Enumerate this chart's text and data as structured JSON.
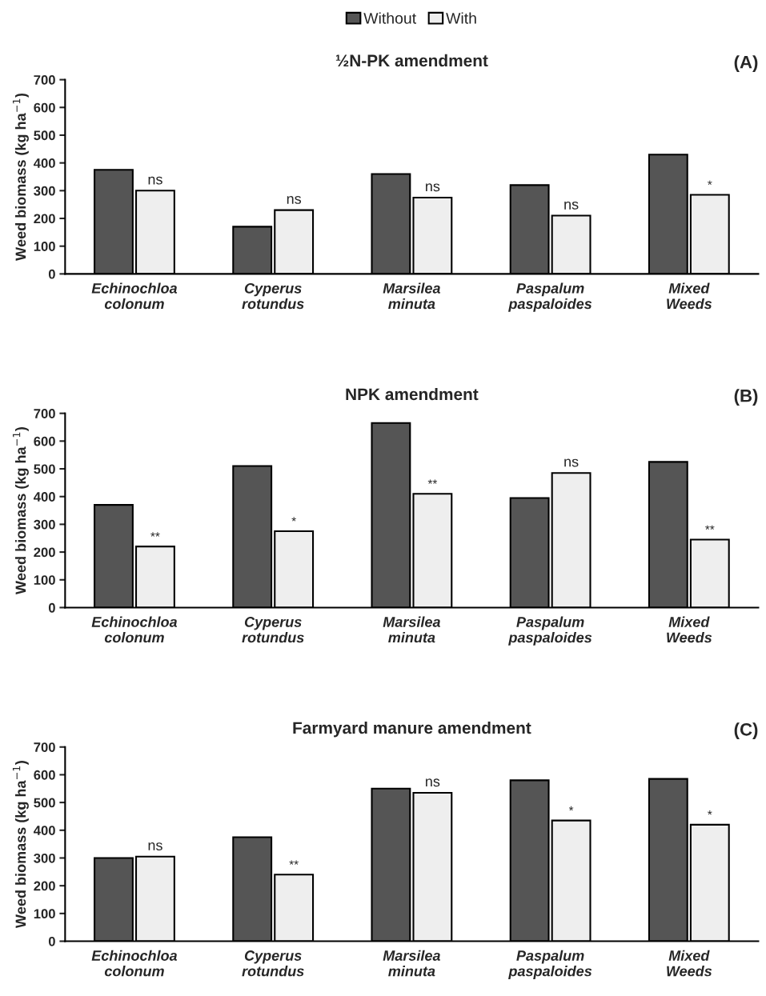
{
  "chart_data": [
    {
      "type": "bar",
      "title": "½N-PK amendment",
      "ylabel": "Weed biomass (kg ha$^{−1}$)",
      "categories": [
        "Echinochloa\ncolonum",
        "Cyperus\nrotundus",
        "Marsilea\nminuta",
        "Paspalum\npaspaloides",
        "Mixed\nWeeds"
      ],
      "series": [
        {
          "name": "Without",
          "color": "#555555",
          "values": [
            375,
            170,
            360,
            320,
            430
          ]
        },
        {
          "name": "With",
          "color": "#eeeeee",
          "values": [
            300,
            230,
            275,
            210,
            285
          ]
        }
      ],
      "ylim": [
        0,
        700
      ],
      "yticks": [
        0,
        100,
        200,
        300,
        400,
        500,
        600,
        700
      ],
      "legend": "top",
      "grid": false,
      "annotations": [
        "(A)",
        {
          "text": "ns",
          "x": "Echinochloa\ncolonum",
          "y": 300
        },
        {
          "text": "ns",
          "x": "Cyperus\nrotundus",
          "y": 230
        },
        {
          "text": "ns",
          "x": "Marsilea\nminuta",
          "y": 275
        },
        {
          "text": "ns",
          "x": "Paspalum\npaspaloides",
          "y": 210
        },
        {
          "text": "*",
          "x": "Mixed\nWeeds",
          "y": 285
        }
      ]
    },
    {
      "type": "bar",
      "title": "NPK amendment",
      "ylabel": "Weed biomass (kg ha$^{−1}$)",
      "categories": [
        "Echinochloa\ncolonum",
        "Cyperus\nrotundus",
        "Marsilea\nminuta",
        "Paspalum\npaspaloides",
        "Mixed\nWeeds"
      ],
      "series": [
        {
          "color": "#555555",
          "values": [
            370,
            510,
            665,
            395,
            525
          ]
        },
        {
          "color": "#eeeeee",
          "values": [
            220,
            275,
            410,
            485,
            245
          ]
        }
      ],
      "ylim": [
        0,
        700
      ],
      "yticks": [
        0,
        100,
        200,
        300,
        400,
        500,
        600,
        700
      ],
      "grid": false,
      "annotations": [
        "(B)",
        {
          "text": "**",
          "x": "Echinochloa\ncolonum",
          "y": 220
        },
        {
          "text": "*",
          "x": "Cyperus\nrotundus",
          "y": 275
        },
        {
          "text": "**",
          "x": "Marsilea\nminuta",
          "y": 410
        },
        {
          "text": "ns",
          "x": "Paspalum\npaspaloides",
          "y": 485
        },
        {
          "text": "**",
          "x": "Mixed\nWeeds",
          "y": 245
        }
      ]
    },
    {
      "type": "bar",
      "title": "Farmyard manure amendment",
      "ylabel": "Weed biomass (kg ha$^{−1}$)",
      "categories": [
        "Echinochloa\ncolonum",
        "Cyperus\nrotundus",
        "Marsilea\nminuta",
        "Paspalum\npaspaloides",
        "Mixed\nWeeds"
      ],
      "series": [
        {
          "color": "#555555",
          "values": [
            300,
            375,
            550,
            580,
            585
          ]
        },
        {
          "color": "#eeeeee",
          "values": [
            305,
            240,
            535,
            435,
            420
          ]
        }
      ],
      "ylim": [
        0,
        700
      ],
      "yticks": [
        0,
        100,
        200,
        300,
        400,
        500,
        600,
        700
      ],
      "grid": false,
      "annotations": [
        "(C)",
        {
          "text": "ns",
          "x": "Echinochloa\ncolonum",
          "y": 305
        },
        {
          "text": "**",
          "x": "Cyperus\nrotundus",
          "y": 240
        },
        {
          "text": "ns",
          "x": "Marsilea\nminuta",
          "y": 535
        },
        {
          "text": "*",
          "x": "Paspalum\npaspaloides",
          "y": 435
        },
        {
          "text": "*",
          "x": "Mixed\nWeeds",
          "y": 420
        }
      ]
    }
  ]
}
